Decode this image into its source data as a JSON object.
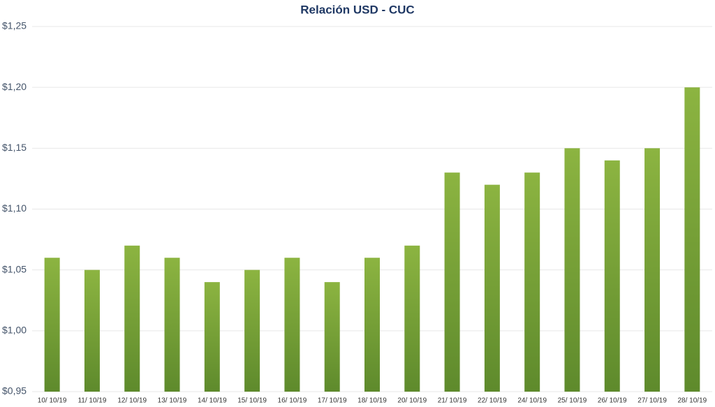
{
  "chart_data": {
    "type": "bar",
    "title": "Relación USD - CUC",
    "categories": [
      "10/ 10/19",
      "11/ 10/19",
      "12/ 10/19",
      "13/ 10/19",
      "14/ 10/19",
      "15/ 10/19",
      "16/ 10/19",
      "17/ 10/19",
      "18/ 10/19",
      "20/ 10/19",
      "21/ 10/19",
      "22/ 10/19",
      "24/ 10/19",
      "25/ 10/19",
      "26/ 10/19",
      "27/ 10/19",
      "28/ 10/19"
    ],
    "values": [
      1.06,
      1.05,
      1.07,
      1.06,
      1.04,
      1.05,
      1.06,
      1.04,
      1.06,
      1.07,
      1.13,
      1.12,
      1.13,
      1.15,
      1.14,
      1.15,
      1.2
    ],
    "color": [
      "#8cb441",
      "#5e8a2c"
    ],
    "ylim": [
      0.95,
      1.25
    ],
    "yticks": [
      {
        "value": 0.95,
        "label": "$0,95"
      },
      {
        "value": 1.0,
        "label": "$1,00"
      },
      {
        "value": 1.05,
        "label": "$1,05"
      },
      {
        "value": 1.1,
        "label": "$1,10"
      },
      {
        "value": 1.15,
        "label": "$1,15"
      },
      {
        "value": 1.2,
        "label": "$1,20"
      },
      {
        "value": 1.25,
        "label": "$1,25"
      }
    ],
    "grid": true
  }
}
